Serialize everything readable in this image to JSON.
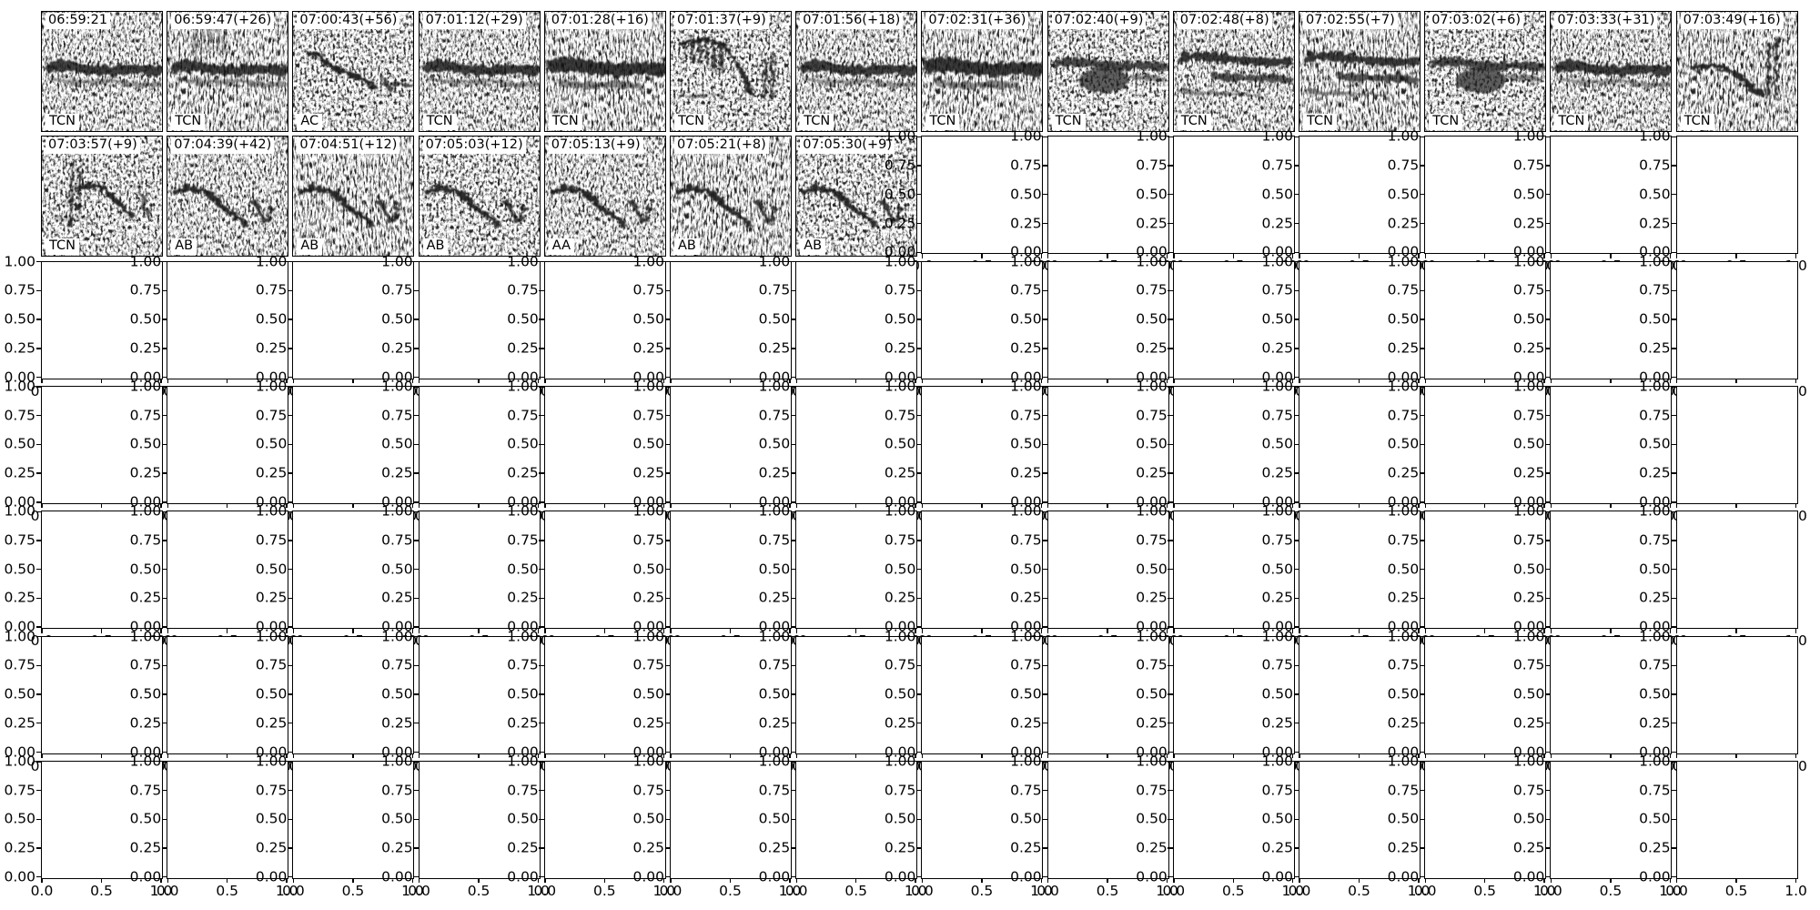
{
  "figure": {
    "colors": {
      "ink": "#000000",
      "paper": "#ffffff"
    },
    "grid": {
      "rows": 7,
      "cols": 14,
      "image_cells": 21,
      "empty_cells": 77
    },
    "axis": {
      "y_tick_labels": [
        "1.00",
        "0.75",
        "0.50",
        "0.25",
        "0.00"
      ],
      "x_tick_labels": [
        "0.0",
        "0.5",
        "1.0"
      ]
    },
    "spectrograms": [
      {
        "timestamp": "06:59:21",
        "label": "TCN",
        "shape": "band"
      },
      {
        "timestamp": "06:59:47(+26)",
        "label": "TCN",
        "shape": "band-streaks"
      },
      {
        "timestamp": "07:00:43(+56)",
        "label": "AC",
        "shape": "chirp-down"
      },
      {
        "timestamp": "07:01:12(+29)",
        "label": "TCN",
        "shape": "band"
      },
      {
        "timestamp": "07:01:28(+16)",
        "label": "TCN",
        "shape": "band-thick"
      },
      {
        "timestamp": "07:01:37(+9)",
        "label": "TCN",
        "shape": "pulses"
      },
      {
        "timestamp": "07:01:56(+18)",
        "label": "TCN",
        "shape": "band"
      },
      {
        "timestamp": "07:02:31(+36)",
        "label": "TCN",
        "shape": "band-thick"
      },
      {
        "timestamp": "07:02:40(+9)",
        "label": "TCN",
        "shape": "band-blob"
      },
      {
        "timestamp": "07:02:48(+8)",
        "label": "TCN",
        "shape": "bands-slant"
      },
      {
        "timestamp": "07:02:55(+7)",
        "label": "TCN",
        "shape": "bands-slant"
      },
      {
        "timestamp": "07:03:02(+6)",
        "label": "TCN",
        "shape": "band-blob"
      },
      {
        "timestamp": "07:03:33(+31)",
        "label": "TCN",
        "shape": "band"
      },
      {
        "timestamp": "07:03:49(+16)",
        "label": "TCN",
        "shape": "hook-spikes"
      },
      {
        "timestamp": "07:03:57(+9)",
        "label": "TCN",
        "shape": "spike-arc"
      },
      {
        "timestamp": "07:04:39(+42)",
        "label": "AB",
        "shape": "squiggle"
      },
      {
        "timestamp": "07:04:51(+12)",
        "label": "AB",
        "shape": "squiggle"
      },
      {
        "timestamp": "07:05:03(+12)",
        "label": "AB",
        "shape": "squiggle"
      },
      {
        "timestamp": "07:05:13(+9)",
        "label": "AA",
        "shape": "squiggle"
      },
      {
        "timestamp": "07:05:21(+8)",
        "label": "AB",
        "shape": "squiggle"
      },
      {
        "timestamp": "07:05:30(+9)",
        "label": "AB",
        "shape": "squiggle"
      }
    ]
  },
  "chart_data": {
    "type": "table",
    "columns": [
      "timestamp",
      "label"
    ],
    "rows": [
      [
        "06:59:21",
        "TCN"
      ],
      [
        "06:59:47(+26)",
        "TCN"
      ],
      [
        "07:00:43(+56)",
        "AC"
      ],
      [
        "07:01:12(+29)",
        "TCN"
      ],
      [
        "07:01:28(+16)",
        "TCN"
      ],
      [
        "07:01:37(+9)",
        "TCN"
      ],
      [
        "07:01:56(+18)",
        "TCN"
      ],
      [
        "07:02:31(+36)",
        "TCN"
      ],
      [
        "07:02:40(+9)",
        "TCN"
      ],
      [
        "07:02:48(+8)",
        "TCN"
      ],
      [
        "07:02:55(+7)",
        "TCN"
      ],
      [
        "07:03:02(+6)",
        "TCN"
      ],
      [
        "07:03:33(+31)",
        "TCN"
      ],
      [
        "07:03:49(+16)",
        "TCN"
      ],
      [
        "07:03:57(+9)",
        "TCN"
      ],
      [
        "07:04:39(+42)",
        "AB"
      ],
      [
        "07:04:51(+12)",
        "AB"
      ],
      [
        "07:05:03(+12)",
        "AB"
      ],
      [
        "07:05:13(+9)",
        "AA"
      ],
      [
        "07:05:21(+8)",
        "AB"
      ],
      [
        "07:05:30(+9)",
        "AB"
      ]
    ],
    "empty_subplot_axes": {
      "x_range": [
        0.0,
        1.0
      ],
      "y_range": [
        0.0,
        1.0
      ],
      "x_ticks": [
        "0.0",
        "0.5",
        "1.0"
      ],
      "y_ticks": [
        "1.00",
        "0.75",
        "0.50",
        "0.25",
        "0.00"
      ]
    },
    "grid": {
      "rows": 7,
      "cols": 14,
      "image_cells": 21,
      "empty_cells": 77
    }
  }
}
